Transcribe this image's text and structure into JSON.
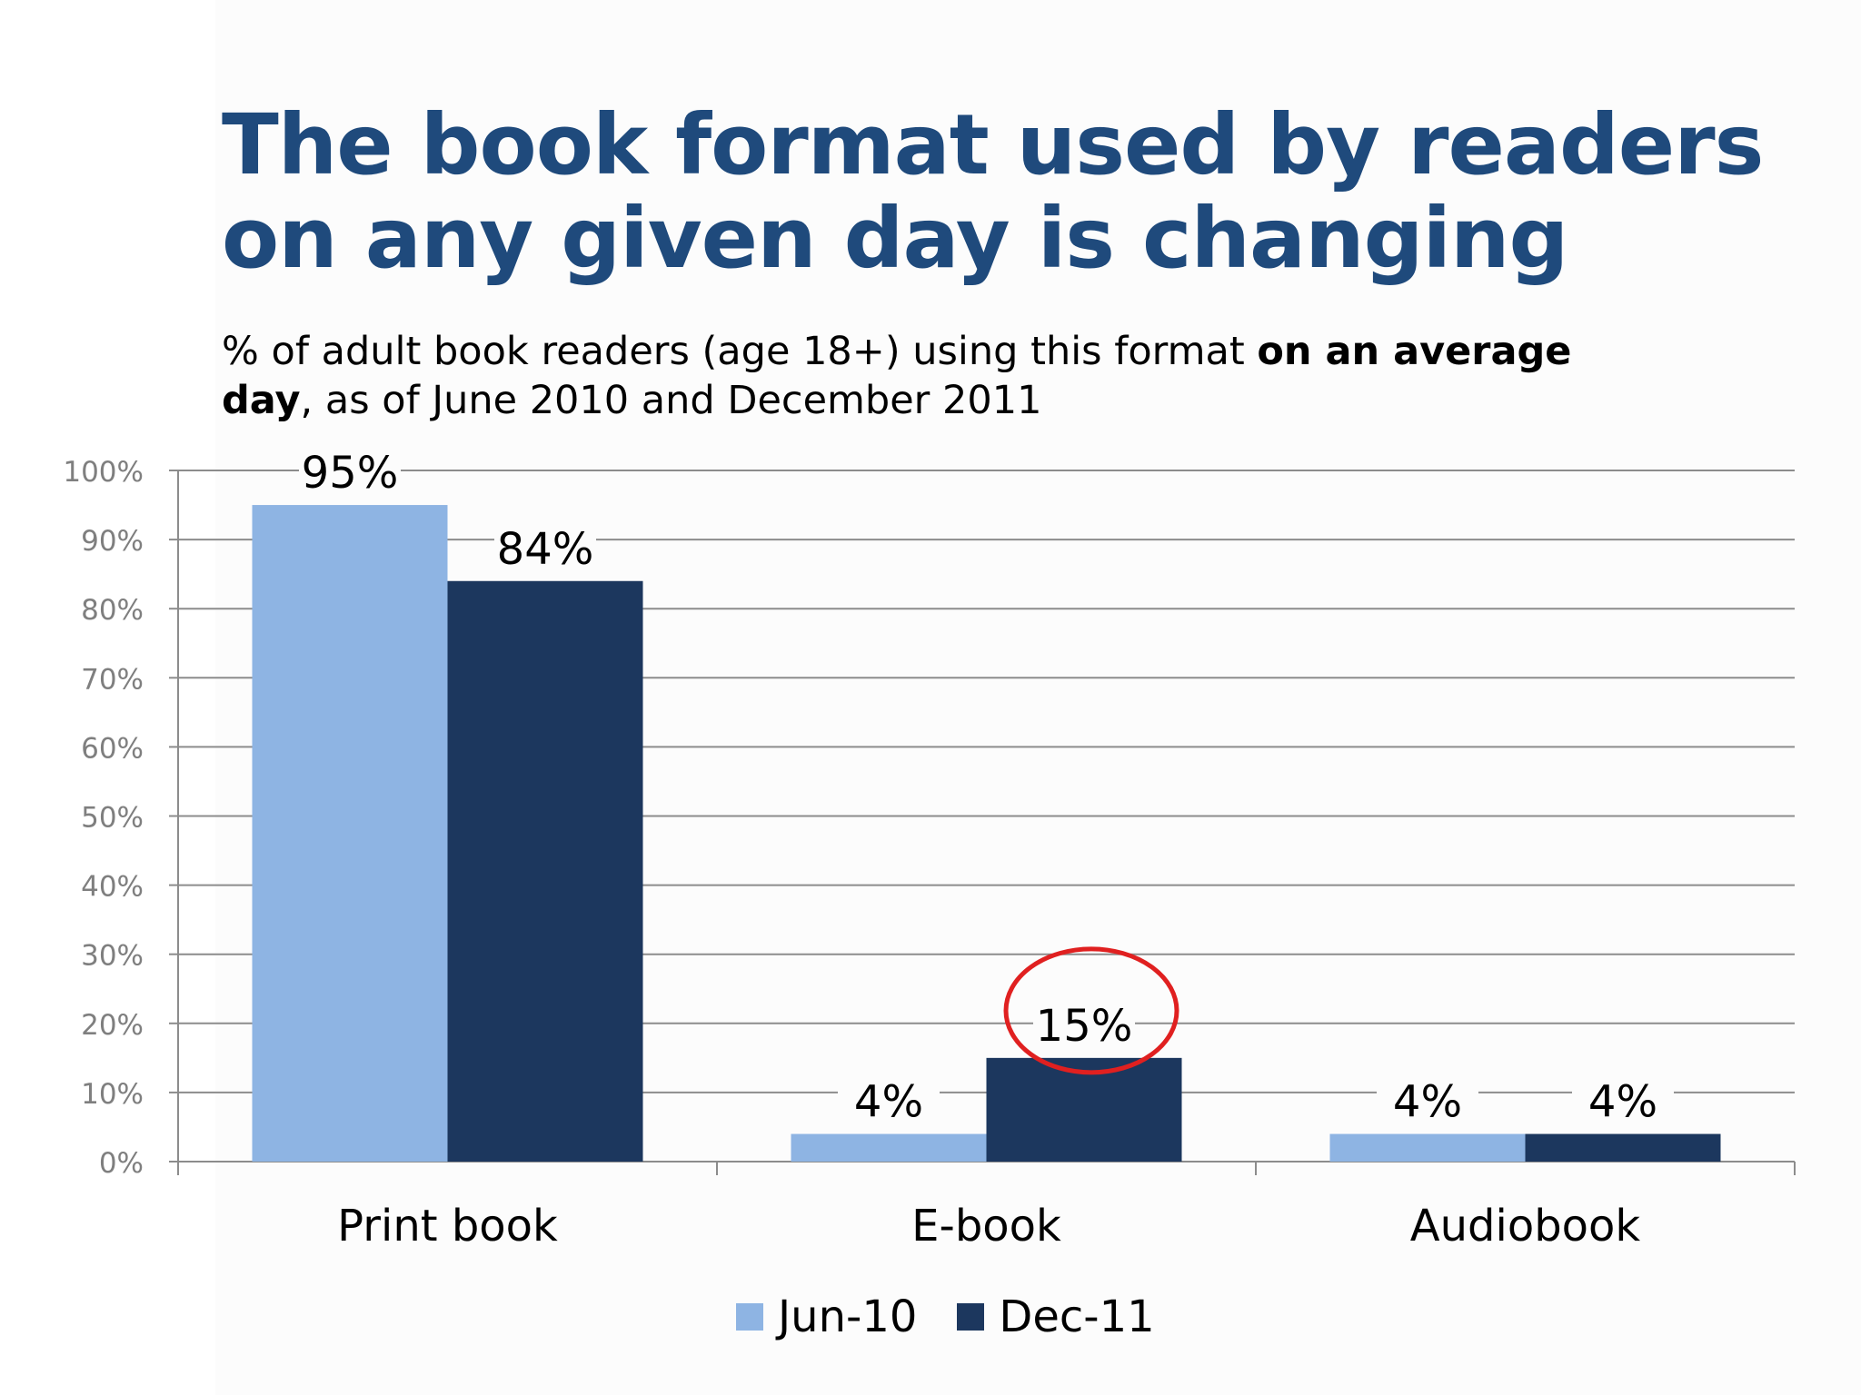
{
  "title": "The book format used by readers on any given day is changing",
  "subtitle": {
    "before": "% of adult book readers (age 18+) using this format ",
    "bold": "on an average day",
    "after": ", as of June 2010 and December 2011"
  },
  "colors": {
    "jun10": "#8eb4e3",
    "dec11": "#1c375e",
    "highlight_circle": "#e02020",
    "title": "#1f4a7c"
  },
  "chart_data": {
    "type": "bar",
    "categories": [
      "Print book",
      "E-book",
      "Audiobook"
    ],
    "series": [
      {
        "name": "Jun-10",
        "values": [
          95,
          4,
          4
        ],
        "labels": [
          "95%",
          "4%",
          "4%"
        ]
      },
      {
        "name": "Dec-11",
        "values": [
          84,
          15,
          4
        ],
        "labels": [
          "84%",
          "15%",
          "4%"
        ]
      }
    ],
    "ylim": [
      0,
      100
    ],
    "yticks": [
      0,
      10,
      20,
      30,
      40,
      50,
      60,
      70,
      80,
      90,
      100
    ],
    "ytick_labels": [
      "0%",
      "10%",
      "20%",
      "30%",
      "40%",
      "50%",
      "60%",
      "70%",
      "80%",
      "90%",
      "100%"
    ],
    "grid": true,
    "legend_position": "bottom",
    "annotation": {
      "type": "circle",
      "category": "E-book",
      "series": "Dec-11",
      "value": 15
    }
  }
}
